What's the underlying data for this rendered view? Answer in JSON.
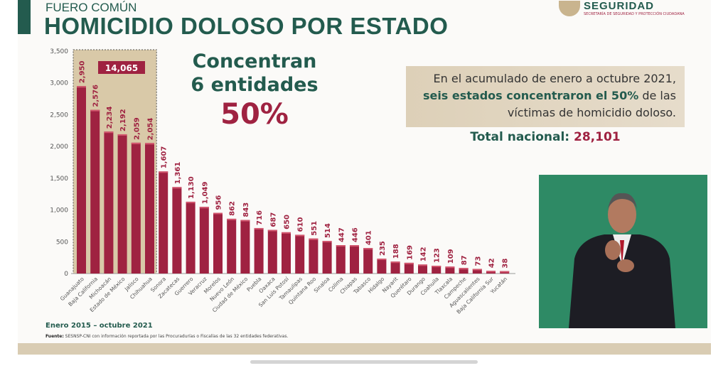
{
  "header": {
    "kicker": "FUERO COMÚN",
    "title": "HOMICIDIO DOLOSO POR ESTADO",
    "logo_name": "SEGURIDAD",
    "logo_subtitle": "SECRETARÍA DE SEGURIDAD Y PROTECCIÓN CIUDADANA"
  },
  "callout": {
    "line1": "Concentran",
    "line2": "6 entidades",
    "percent": "50%"
  },
  "note": {
    "text_a": "En el acumulado de enero a octubre 2021,",
    "text_bold": "seis estados concentraron el 50%",
    "text_b": "de las víctimas de homicidio doloso."
  },
  "total": {
    "label": "Total nacional:",
    "value": "28,101"
  },
  "period": "Enero 2015 – octubre 2021",
  "source": {
    "label": "Fuente:",
    "text": "SESNSP-CNI con información reportada por las Procuradurías o Fiscalías de las 32 entidades federativas."
  },
  "colors": {
    "green": "#235b4e",
    "bar": "#9f2241",
    "highlight": "#d9c9a8"
  },
  "chart_data": {
    "type": "bar",
    "title": "HOMICIDIO DOLOSO POR ESTADO",
    "xlabel": "",
    "ylabel": "",
    "ylim": [
      0,
      3500
    ],
    "yticks": [
      "0",
      "500",
      "1,000",
      "1,500",
      "2,000",
      "2,500",
      "3,000",
      "3,500"
    ],
    "grid": false,
    "highlight": {
      "count": 6,
      "label": "14,065"
    },
    "categories": [
      "Guanajuato",
      "Baja California",
      "Michoacán",
      "Estado de México",
      "Jalisco",
      "Chihuahua",
      "Sonora",
      "Zacatecas",
      "Guerrero",
      "Veracruz",
      "Morelos",
      "Nuevo León",
      "Ciudad de México",
      "Puebla",
      "Oaxaca",
      "San Luis Potosí",
      "Tamaulipas",
      "Quintana Roo",
      "Sinaloa",
      "Colima",
      "Chiapas",
      "Tabasco",
      "Hidalgo",
      "Nayarit",
      "Querétaro",
      "Durango",
      "Coahuila",
      "Tlaxcala",
      "Campeche",
      "Aguascalientes",
      "Baja California Sur",
      "Yucatán"
    ],
    "values": [
      2950,
      2576,
      2234,
      2192,
      2059,
      2054,
      1607,
      1361,
      1130,
      1049,
      956,
      862,
      843,
      716,
      687,
      650,
      610,
      551,
      514,
      447,
      446,
      401,
      235,
      188,
      169,
      142,
      123,
      109,
      87,
      73,
      42,
      38
    ],
    "value_labels": [
      "2,950",
      "2,576",
      "2,234",
      "2,192",
      "2,059",
      "2,054",
      "1,607",
      "1,361",
      "1,130",
      "1,049",
      "956",
      "862",
      "843",
      "716",
      "687",
      "650",
      "610",
      "551",
      "514",
      "447",
      "446",
      "401",
      "235",
      "188",
      "169",
      "142",
      "123",
      "109",
      "87",
      "73",
      "42",
      "38"
    ]
  }
}
